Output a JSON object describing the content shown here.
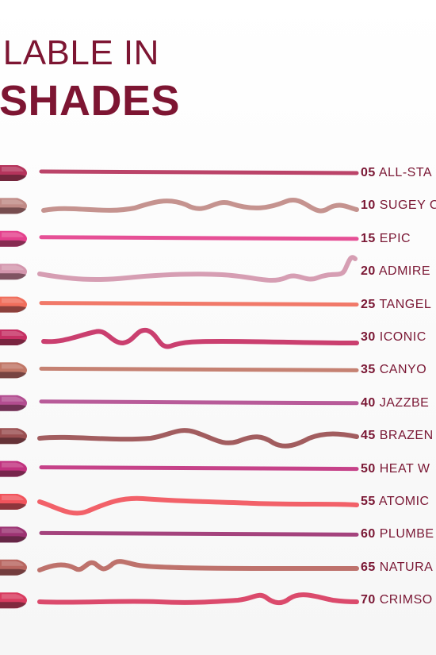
{
  "header": {
    "line1": "ILABLE IN",
    "line2": "SHADES"
  },
  "shades": [
    {
      "number": "05",
      "name": "ALL-STA",
      "color": "#b5345c",
      "wavy": false
    },
    {
      "number": "10",
      "name": "SUGEY C",
      "color": "#c08a86",
      "wavy": true
    },
    {
      "number": "15",
      "name": "EPIC",
      "color": "#e4418d",
      "wavy": false
    },
    {
      "number": "20",
      "name": "ADMIRE",
      "color": "#d396ad",
      "wavy": true
    },
    {
      "number": "25",
      "name": "TANGEL",
      "color": "#f06e5c",
      "wavy": false
    },
    {
      "number": "30",
      "name": "ICONIC",
      "color": "#c62f63",
      "wavy": true
    },
    {
      "number": "35",
      "name": "CANYO",
      "color": "#c07666",
      "wavy": false
    },
    {
      "number": "40",
      "name": "JAZZBE",
      "color": "#b24d90",
      "wavy": false
    },
    {
      "number": "45",
      "name": "BRAZEN",
      "color": "#9a4f51",
      "wavy": true
    },
    {
      "number": "50",
      "name": "HEAT W",
      "color": "#c1327f",
      "wavy": false
    },
    {
      "number": "55",
      "name": "ATOMIC",
      "color": "#f1545c",
      "wavy": true
    },
    {
      "number": "60",
      "name": "PLUMBE",
      "color": "#9c3372",
      "wavy": false
    },
    {
      "number": "65",
      "name": "NATURA",
      "color": "#b86660",
      "wavy": true
    },
    {
      "number": "70",
      "name": "CRIMSO",
      "color": "#d83b5f",
      "wavy": true
    }
  ]
}
